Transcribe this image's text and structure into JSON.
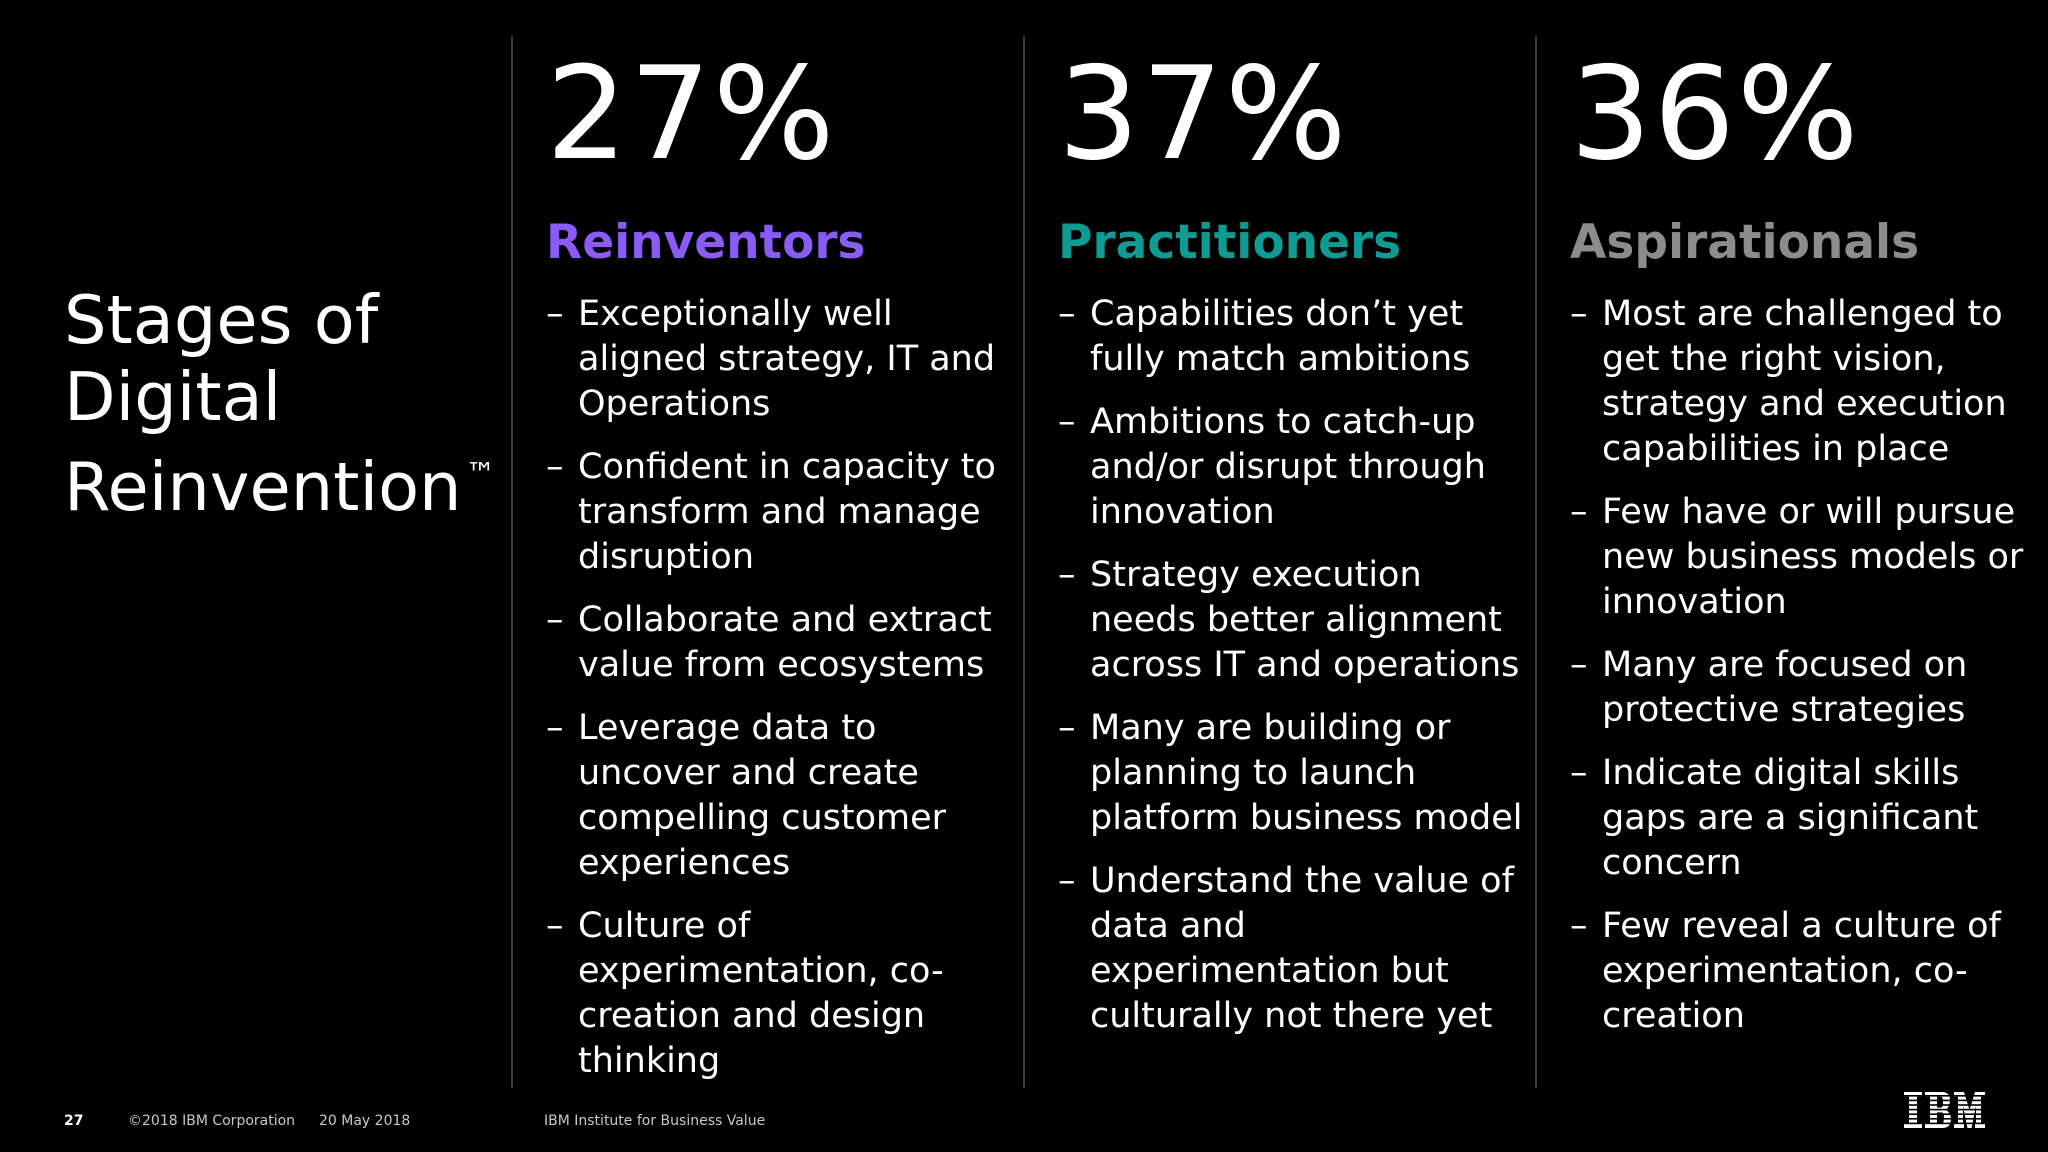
{
  "slide": {
    "title": "Stages of Digital Reinvention",
    "title_mark": "™"
  },
  "columns": [
    {
      "percent": "27%",
      "name": "Reinventors",
      "color": "#8a5cf5",
      "bullets": [
        "Exceptionally well aligned strategy, IT and Operations",
        "Confident in capacity to transform and manage disruption",
        "Collaborate and extract value from ecosystems",
        "Leverage data to uncover and create compelling customer experiences",
        "Culture of experimentation, co-creation and design thinking"
      ]
    },
    {
      "percent": "37%",
      "name": "Practitioners",
      "color": "#0f9a93",
      "bullets": [
        "Capabilities don’t yet fully match ambitions",
        "Ambitions to catch-up and/or disrupt through innovation",
        "Strategy execution needs better alignment across IT and operations",
        "Many are building or planning to launch platform business model",
        "Understand the value of data and experimentation but culturally not there yet"
      ]
    },
    {
      "percent": "36%",
      "name": "Aspirationals",
      "color": "#8c8c8c",
      "bullets": [
        "Most are challenged to get the right vision, strategy and execution capabilities in place",
        "Few have or will pursue new business models or innovation",
        "Many are focused on protective strategies",
        "Indicate digital skills gaps are a significant concern",
        "Few reveal a culture of experimentation, co-creation"
      ]
    }
  ],
  "bullet_marker": "–",
  "footer": {
    "page_number": "27",
    "copyright": "©2018 IBM Corporation",
    "date": "20 May 2018",
    "source": "IBM Institute for Business Value"
  },
  "logo": {
    "text": "IBM",
    "icon": "ibm-logo"
  }
}
